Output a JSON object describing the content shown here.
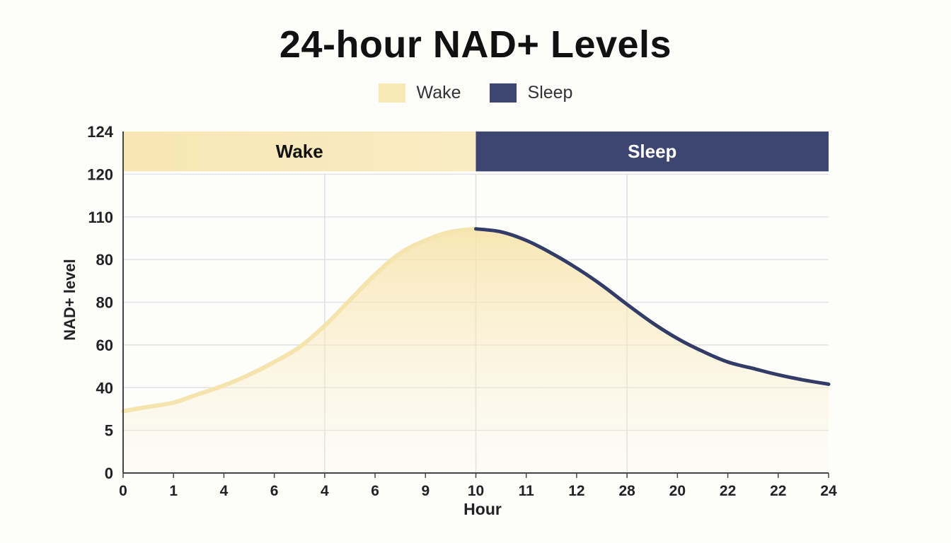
{
  "chart_data": {
    "type": "line",
    "title": "24-hour NAD+ Levels",
    "xlabel": "Hour",
    "ylabel": "NAD+ level",
    "x_tick_labels": [
      "0",
      "1",
      "4",
      "6",
      "4",
      "6",
      "9",
      "10",
      "11",
      "12",
      "28",
      "20",
      "22",
      "22",
      "24"
    ],
    "y_tick_labels": [
      "0",
      "5",
      "40",
      "60",
      "80",
      "80",
      "110",
      "120",
      "124"
    ],
    "bands": [
      {
        "label": "Wake",
        "x_start": 0,
        "x_end": 7,
        "color": "#f8e8b8",
        "text_color": "#111111"
      },
      {
        "label": "Sleep",
        "x_start": 7,
        "x_end": 14,
        "color": "#3d4670",
        "text_color": "#ffffff"
      }
    ],
    "legend": {
      "placement": "top-center",
      "items": [
        {
          "label": "Wake",
          "color": "#f8e8b8"
        },
        {
          "label": "Sleep",
          "color": "#3d4670"
        }
      ]
    },
    "grid": true,
    "series": [
      {
        "segment": "wake",
        "color": "#f6e4ae",
        "points": [
          [
            0,
            1.45
          ],
          [
            0.5,
            1.55
          ],
          [
            1,
            1.65
          ],
          [
            1.5,
            1.85
          ],
          [
            2,
            2.05
          ],
          [
            2.5,
            2.3
          ],
          [
            3,
            2.6
          ],
          [
            3.5,
            2.95
          ],
          [
            4,
            3.45
          ],
          [
            4.5,
            4.05
          ],
          [
            5,
            4.65
          ],
          [
            5.5,
            5.15
          ],
          [
            6,
            5.45
          ],
          [
            6.5,
            5.65
          ],
          [
            7,
            5.72
          ]
        ]
      },
      {
        "segment": "sleep",
        "color": "#333c66",
        "points": [
          [
            7,
            5.72
          ],
          [
            7.5,
            5.65
          ],
          [
            8,
            5.45
          ],
          [
            8.5,
            5.15
          ],
          [
            9,
            4.8
          ],
          [
            9.5,
            4.4
          ],
          [
            10,
            3.95
          ],
          [
            10.5,
            3.52
          ],
          [
            11,
            3.15
          ],
          [
            11.5,
            2.85
          ],
          [
            12,
            2.6
          ],
          [
            12.5,
            2.45
          ],
          [
            13,
            2.3
          ],
          [
            13.5,
            2.18
          ],
          [
            14,
            2.08
          ]
        ]
      }
    ]
  }
}
